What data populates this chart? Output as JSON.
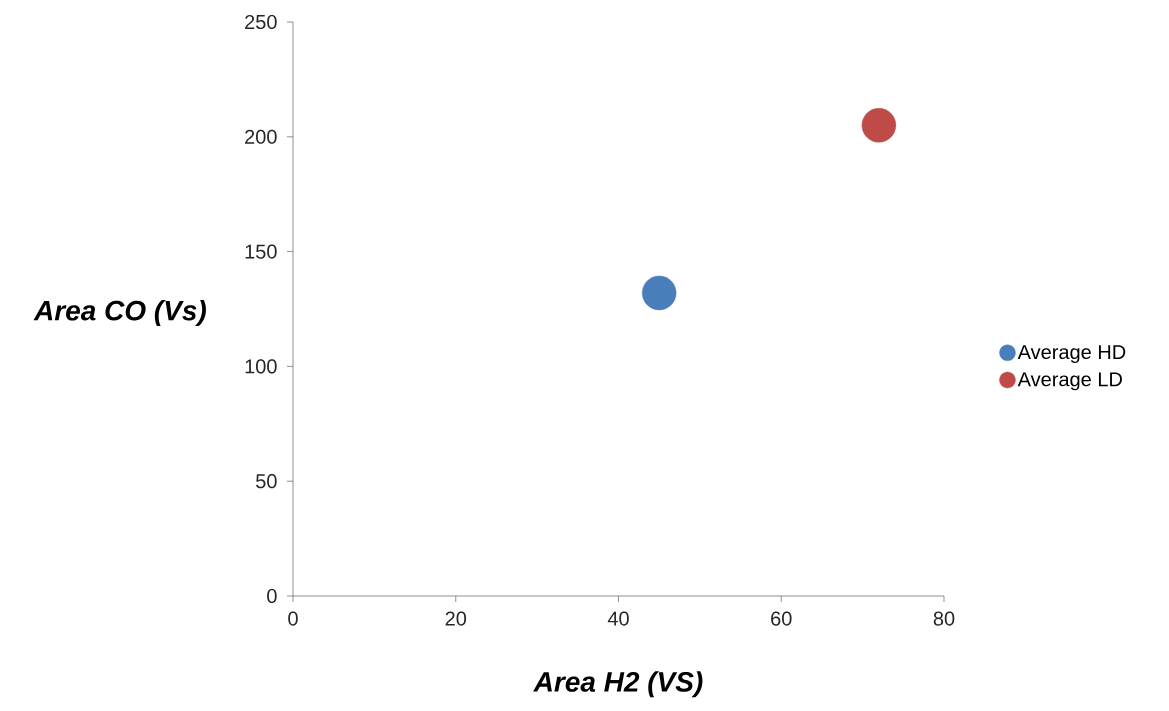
{
  "chart_data": {
    "type": "scatter",
    "xlabel": "Area H2 (VS)",
    "ylabel": "Area CO (Vs)",
    "series": [
      {
        "name": "Average HD",
        "color": "#4a7ebb",
        "x": [
          45
        ],
        "values": [
          132
        ]
      },
      {
        "name": "Average LD",
        "color": "#be4b48",
        "x": [
          72
        ],
        "values": [
          205
        ]
      }
    ],
    "xlim": [
      0,
      80
    ],
    "ylim": [
      0,
      250
    ],
    "xticks": [
      0,
      20,
      40,
      60,
      80
    ],
    "yticks": [
      0,
      50,
      100,
      150,
      200,
      250
    ],
    "marker": "circle",
    "legend": "right",
    "grid": false
  }
}
